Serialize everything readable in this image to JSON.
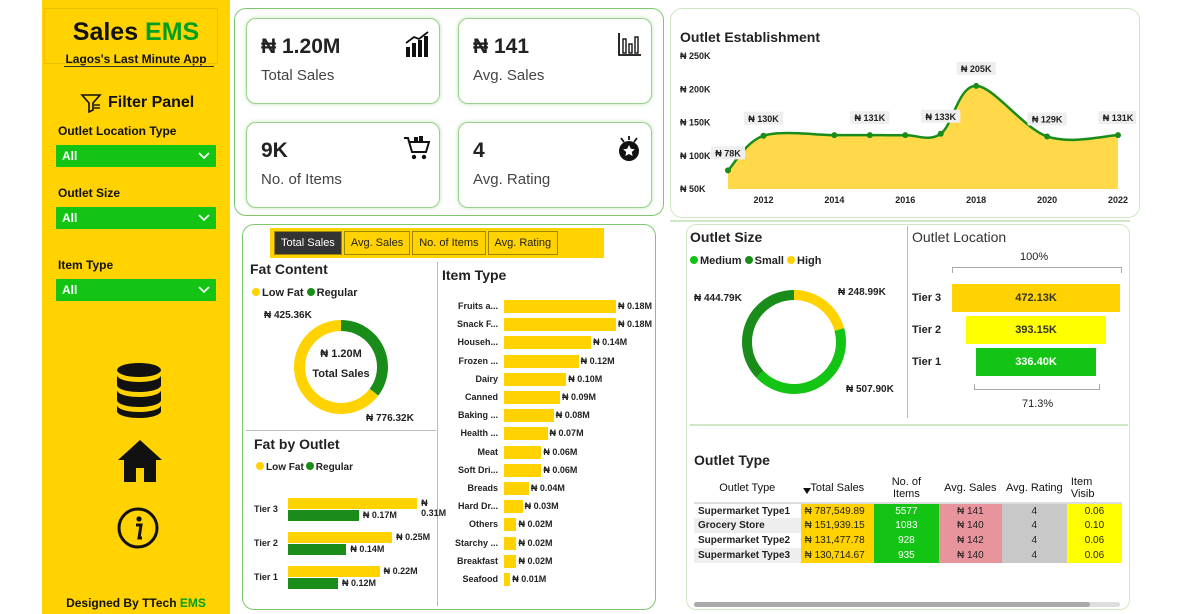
{
  "sidebar": {
    "title_main": "Sales ",
    "title_accent": "EMS",
    "subtitle": "Lagos's Last Minute App",
    "filter_panel": "Filter Panel",
    "filters": [
      {
        "label": "Outlet Location Type",
        "value": "All"
      },
      {
        "label": "Outlet Size",
        "value": "All"
      },
      {
        "label": "Item Type",
        "value": "All"
      }
    ],
    "designed_prefix": "Designed By TTech ",
    "designed_accent": "EMS"
  },
  "kpis": [
    {
      "value": "₦ 1.20M",
      "label": "Total Sales",
      "icon": "bar-chart-icon"
    },
    {
      "value": "₦ 141",
      "label": "Avg. Sales",
      "icon": "column-chart-icon"
    },
    {
      "value": "9K",
      "label": "No. of Items",
      "icon": "cart-icon"
    },
    {
      "value": "4",
      "label": "Avg. Rating",
      "icon": "rating-badge-icon"
    }
  ],
  "tabs": [
    "Total Sales",
    "Avg. Sales",
    "No. of Items",
    "Avg. Rating"
  ],
  "colors": {
    "yellow": "#ffd200",
    "green": "#1a8c1a",
    "bright_green": "#14c414",
    "light_yellow": "#ffff00"
  },
  "fat_content": {
    "title": "Fat Content",
    "legend": [
      "Low Fat",
      "Regular"
    ],
    "center_value": "₦ 1.20M",
    "center_label": "Total Sales",
    "regular_label": "₦ 425.36K",
    "lowfat_label": "₦ 776.32K"
  },
  "fat_by_outlet": {
    "title": "Fat by Outlet",
    "legend": [
      "Low Fat",
      "Regular"
    ],
    "rows": [
      {
        "tier": "Tier 3",
        "low_label": "₦ 0.31M",
        "reg_label": "₦ 0.17M"
      },
      {
        "tier": "Tier 2",
        "low_label": "₦ 0.25M",
        "reg_label": "₦ 0.14M"
      },
      {
        "tier": "Tier 1",
        "low_label": "₦ 0.22M",
        "reg_label": "₦ 0.12M"
      }
    ]
  },
  "item_type": {
    "title": "Item Type",
    "items": [
      {
        "name": "Fruits a...",
        "label": "₦ 0.18M"
      },
      {
        "name": "Snack F...",
        "label": "₦ 0.18M"
      },
      {
        "name": "Househ...",
        "label": "₦ 0.14M"
      },
      {
        "name": "Frozen ...",
        "label": "₦ 0.12M"
      },
      {
        "name": "Dairy",
        "label": "₦ 0.10M"
      },
      {
        "name": "Canned",
        "label": "₦ 0.09M"
      },
      {
        "name": "Baking ...",
        "label": "₦ 0.08M"
      },
      {
        "name": "Health ...",
        "label": "₦ 0.07M"
      },
      {
        "name": "Meat",
        "label": "₦ 0.06M"
      },
      {
        "name": "Soft Dri...",
        "label": "₦ 0.06M"
      },
      {
        "name": "Breads",
        "label": "₦ 0.04M"
      },
      {
        "name": "Hard Dr...",
        "label": "₦ 0.03M"
      },
      {
        "name": "Others",
        "label": "₦ 0.02M"
      },
      {
        "name": "Starchy ...",
        "label": "₦ 0.02M"
      },
      {
        "name": "Breakfast",
        "label": "₦ 0.02M"
      },
      {
        "name": "Seafood",
        "label": "₦ 0.01M"
      }
    ]
  },
  "outlet_establishment": {
    "title": "Outlet Establishment"
  },
  "outlet_size": {
    "title": "Outlet Size",
    "legend": [
      "Medium",
      "Small",
      "High"
    ],
    "labels": {
      "medium": "₦ 507.90K",
      "small": "₦ 444.79K",
      "high": "₦ 248.99K"
    }
  },
  "outlet_location": {
    "title": "Outlet Location",
    "top_pct": "100%",
    "bottom_pct": "71.3%",
    "tiers": [
      {
        "name": "Tier 3",
        "label": "472.13K"
      },
      {
        "name": "Tier 2",
        "label": "393.15K"
      },
      {
        "name": "Tier 1",
        "label": "336.40K"
      }
    ]
  },
  "outlet_type": {
    "title": "Outlet Type",
    "columns": [
      "Outlet Type",
      "Total Sales",
      "No. of Items",
      "Avg. Sales",
      "Avg. Rating",
      "Item Visib"
    ],
    "rows": [
      {
        "type": "Supermarket Type1",
        "sales": "₦ 787,549.89",
        "items": "5577",
        "avg": "₦ 141",
        "rating": "4",
        "vis": "0.06"
      },
      {
        "type": "Grocery Store",
        "sales": "₦ 151,939.15",
        "items": "1083",
        "avg": "₦ 140",
        "rating": "4",
        "vis": "0.10"
      },
      {
        "type": "Supermarket Type2",
        "sales": "₦ 131,477.78",
        "items": "928",
        "avg": "₦ 142",
        "rating": "4",
        "vis": "0.06"
      },
      {
        "type": "Supermarket Type3",
        "sales": "₦ 130,714.67",
        "items": "935",
        "avg": "₦ 140",
        "rating": "4",
        "vis": "0.06"
      }
    ]
  },
  "chart_data": [
    {
      "type": "area",
      "title": "Outlet Establishment",
      "x": [
        2011,
        2012,
        2014,
        2015,
        2016,
        2017,
        2018,
        2020,
        2022
      ],
      "values": [
        78,
        130,
        131,
        131,
        131,
        133,
        205,
        129,
        131
      ],
      "point_labels": [
        "₦ 78K",
        "₦ 130K",
        "",
        "₦ 131K",
        "",
        "₦ 133K",
        "₦ 205K",
        "₦ 129K",
        "₦ 131K"
      ],
      "y_ticks": [
        "₦ 50K",
        "₦ 100K",
        "₦ 150K",
        "₦ 200K",
        "₦ 250K"
      ],
      "x_ticks": [
        "2012",
        "2014",
        "2016",
        "2018",
        "2020",
        "2022"
      ],
      "ylim": [
        50,
        250
      ],
      "xlim": [
        2011,
        2022
      ]
    },
    {
      "type": "pie",
      "title": "Fat Content",
      "categories": [
        "Low Fat",
        "Regular"
      ],
      "values": [
        776.32,
        425.36
      ]
    },
    {
      "type": "bar",
      "title": "Fat by Outlet",
      "categories": [
        "Tier 3",
        "Tier 2",
        "Tier 1"
      ],
      "series": [
        {
          "name": "Low Fat",
          "values": [
            0.31,
            0.25,
            0.22
          ]
        },
        {
          "name": "Regular",
          "values": [
            0.17,
            0.14,
            0.12
          ]
        }
      ]
    },
    {
      "type": "bar",
      "title": "Item Type",
      "categories": [
        "Fruits a...",
        "Snack F...",
        "Househ...",
        "Frozen ...",
        "Dairy",
        "Canned",
        "Baking ...",
        "Health ...",
        "Meat",
        "Soft Dri...",
        "Breads",
        "Hard Dr...",
        "Others",
        "Starchy ...",
        "Breakfast",
        "Seafood"
      ],
      "values": [
        0.18,
        0.18,
        0.14,
        0.12,
        0.1,
        0.09,
        0.08,
        0.07,
        0.06,
        0.06,
        0.04,
        0.03,
        0.02,
        0.02,
        0.02,
        0.01
      ]
    },
    {
      "type": "pie",
      "title": "Outlet Size",
      "categories": [
        "Medium",
        "Small",
        "High"
      ],
      "values": [
        507.9,
        444.79,
        248.99
      ]
    },
    {
      "type": "bar",
      "title": "Outlet Location",
      "categories": [
        "Tier 3",
        "Tier 2",
        "Tier 1"
      ],
      "values": [
        472.13,
        393.15,
        336.4
      ]
    }
  ]
}
